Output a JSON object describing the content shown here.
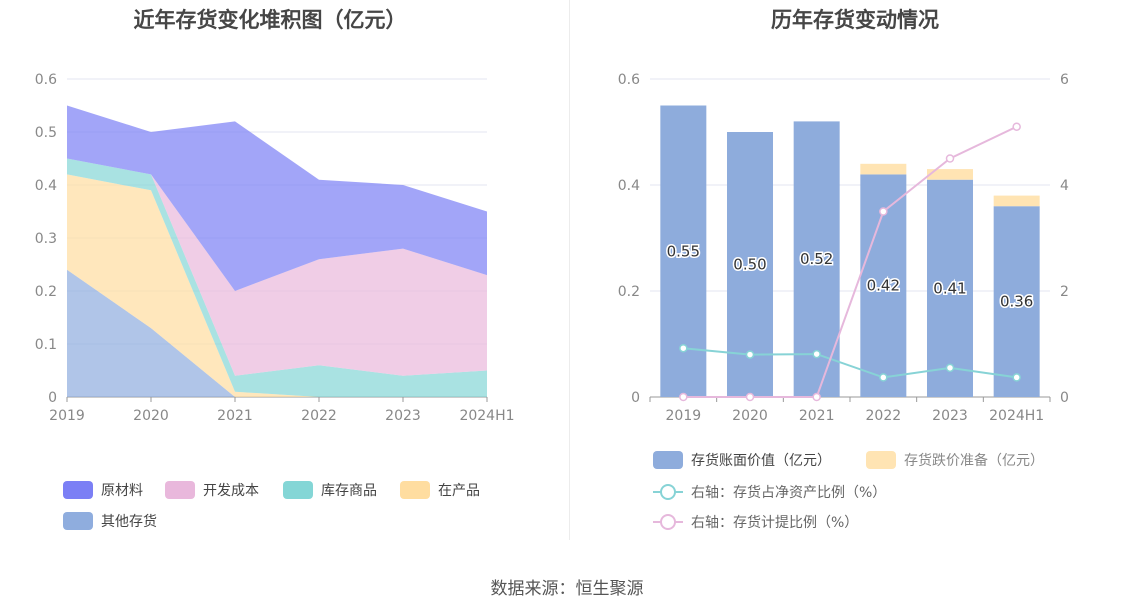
{
  "source_label": "数据来源：恒生聚源",
  "colors": {
    "raw": "#7b7ff5",
    "dev": "#e9b8dc",
    "goods": "#84d6d6",
    "wip": "#ffdda0",
    "other": "#8fadde",
    "book": "#8eacdc",
    "provision": "#ffe4b3",
    "netasset_line": "#87d3d6",
    "ratio_line": "#e6b8dc"
  },
  "chart_data": [
    {
      "type": "area",
      "stacked": true,
      "title": "近年存货变化堆积图（亿元）",
      "x": [
        "2019",
        "2020",
        "2021",
        "2022",
        "2023",
        "2024H1"
      ],
      "ylim": [
        0,
        0.6
      ],
      "yticks": [
        "0",
        "0.1",
        "0.2",
        "0.3",
        "0.4",
        "0.5",
        "0.6"
      ],
      "grid": true,
      "legend_position": "bottom",
      "series": [
        {
          "name": "其他存货",
          "key": "other",
          "values": [
            0.24,
            0.13,
            0.0,
            0.0,
            0.0,
            0.0
          ]
        },
        {
          "name": "在产品",
          "key": "wip",
          "values": [
            0.18,
            0.26,
            0.01,
            0.0,
            0.0,
            0.0
          ]
        },
        {
          "name": "库存商品",
          "key": "goods",
          "values": [
            0.03,
            0.03,
            0.03,
            0.06,
            0.04,
            0.05
          ]
        },
        {
          "name": "开发成本",
          "key": "dev",
          "values": [
            0.0,
            0.0,
            0.16,
            0.2,
            0.24,
            0.18
          ]
        },
        {
          "name": "原材料",
          "key": "raw",
          "values": [
            0.1,
            0.08,
            0.32,
            0.15,
            0.12,
            0.12
          ]
        }
      ],
      "legend_order": [
        "原材料",
        "开发成本",
        "库存商品",
        "在产品",
        "其他存货"
      ]
    },
    {
      "type": "bar",
      "title": "历年存货变动情况",
      "categories": [
        "2019",
        "2020",
        "2021",
        "2022",
        "2023",
        "2024H1"
      ],
      "ylim": [
        0,
        0.6
      ],
      "yticks": [
        "0",
        "0.2",
        "0.4",
        "0.6"
      ],
      "y2lim": [
        0,
        6
      ],
      "y2ticks": [
        "0",
        "2",
        "4",
        "6"
      ],
      "grid": true,
      "legend_position": "bottom",
      "series": [
        {
          "name": "存货账面价值（亿元）",
          "key": "book",
          "kind": "bar",
          "values": [
            0.55,
            0.5,
            0.52,
            0.42,
            0.41,
            0.36
          ],
          "labels": [
            "0.55",
            "0.50",
            "0.52",
            "0.42",
            "0.41",
            "0.36"
          ]
        },
        {
          "name": "存货跌价准备（亿元）",
          "key": "provision",
          "kind": "bar-stack",
          "values": [
            0.0,
            0.0,
            0.0,
            0.02,
            0.02,
            0.02
          ]
        },
        {
          "name": "右轴：存货占净资产比例（%）",
          "key": "netasset_line",
          "kind": "line",
          "axis": "right",
          "values": [
            0.92,
            0.8,
            0.81,
            0.37,
            0.55,
            0.37
          ]
        },
        {
          "name": "右轴：存货计提比例（%）",
          "key": "ratio_line",
          "kind": "line",
          "axis": "right",
          "values": [
            0.0,
            0.0,
            0.0,
            3.5,
            4.5,
            5.1
          ]
        }
      ]
    }
  ]
}
